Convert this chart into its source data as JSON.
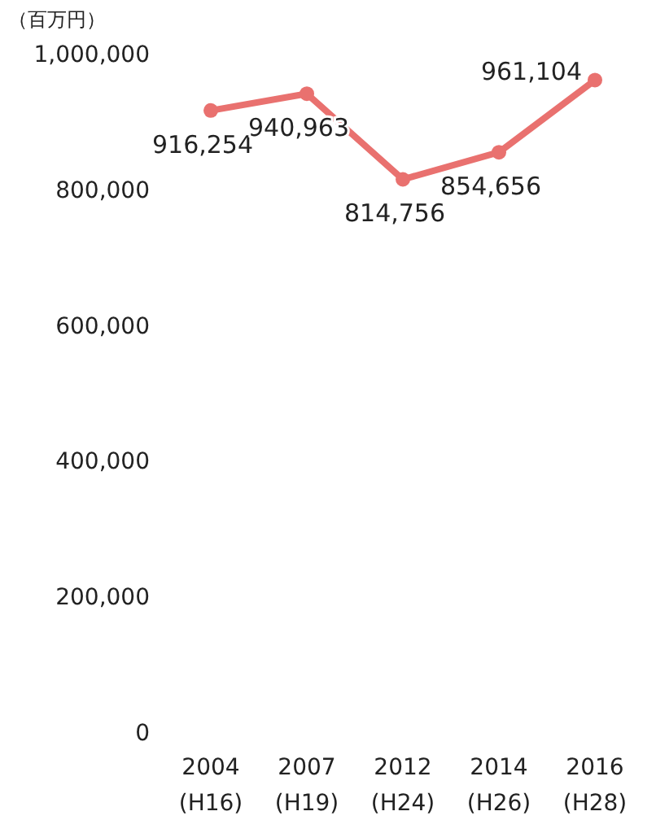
{
  "chart_data": {
    "type": "line",
    "ylabel": "（百万円）",
    "categories": [
      "2004 (H16)",
      "2007 (H19)",
      "2012 (H24)",
      "2014 (H26)",
      "2016 (H28)"
    ],
    "series": [
      {
        "color": "#e9716f",
        "values": [
          916254,
          940963,
          814756,
          854656,
          961104
        ],
        "value_labels": [
          "916,254",
          "940,963",
          "814,756",
          "854,656",
          "961,104"
        ]
      }
    ],
    "ylim": [
      0,
      1000000
    ],
    "yticks": [
      {
        "value": 0,
        "label": "0"
      },
      {
        "value": 200000,
        "label": "200,000"
      },
      {
        "value": 400000,
        "label": "400,000"
      },
      {
        "value": 600000,
        "label": "600,000"
      },
      {
        "value": 800000,
        "label": "800,000"
      },
      {
        "value": 1000000,
        "label": "1,000,000"
      }
    ],
    "grid": false,
    "marker": "circle",
    "line_style": "solid"
  }
}
